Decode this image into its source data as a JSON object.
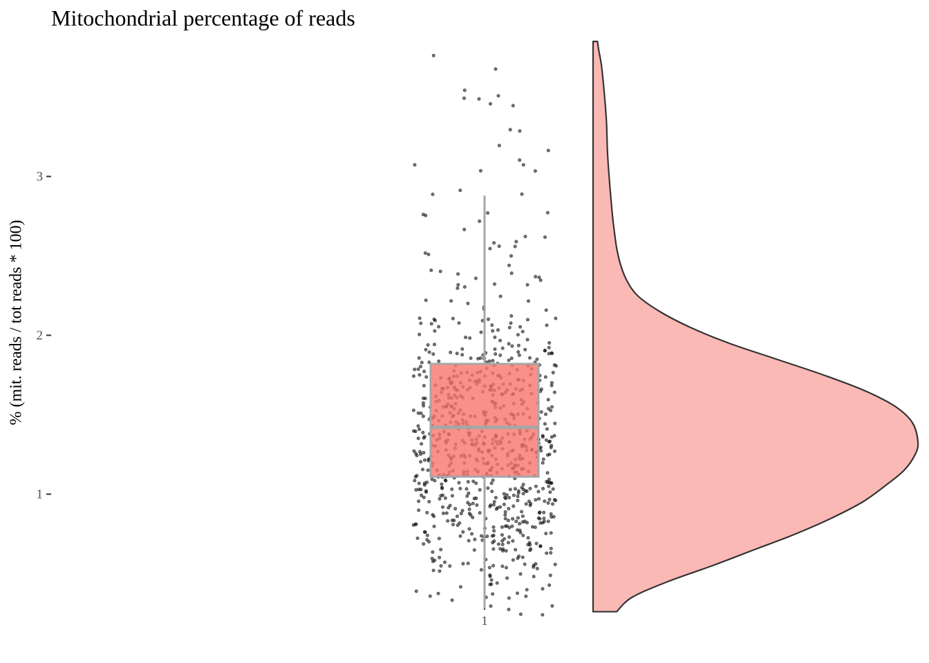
{
  "chart_data": {
    "type": "raincloud",
    "title": "Mitochondrial percentage of reads",
    "xlabel": "",
    "ylabel": "% (mit. reads / tot reads * 100)",
    "categories": [
      "1"
    ],
    "yticks": [
      1,
      2,
      3
    ],
    "ylim": [
      0.22,
      3.9
    ],
    "grid": false,
    "legend": "none",
    "box": {
      "q1": 1.11,
      "median": 1.42,
      "q3": 1.82,
      "whisker_low": 0.28,
      "whisker_high": 2.88
    },
    "density": {
      "y": [
        0.26,
        0.35,
        0.45,
        0.55,
        0.65,
        0.75,
        0.85,
        0.95,
        1.05,
        1.15,
        1.25,
        1.33,
        1.45,
        1.55,
        1.65,
        1.75,
        1.85,
        1.95,
        2.05,
        2.15,
        2.25,
        2.35,
        2.45,
        2.55,
        2.65,
        2.75,
        2.95,
        3.15,
        3.35,
        3.55,
        3.7,
        3.8,
        3.85
      ],
      "density": [
        0.085,
        0.14,
        0.27,
        0.43,
        0.58,
        0.73,
        0.86,
        0.97,
        1.05,
        1.12,
        1.16,
        1.17,
        1.15,
        1.09,
        0.98,
        0.83,
        0.66,
        0.49,
        0.35,
        0.24,
        0.16,
        0.12,
        0.098,
        0.085,
        0.077,
        0.07,
        0.06,
        0.052,
        0.048,
        0.039,
        0.03,
        0.02,
        0.016
      ]
    },
    "colors": {
      "box_fill": "#f8766d",
      "box_line": "#a6a6a6",
      "violin_fill": "#fbb9b5",
      "violin_line": "#333333",
      "points": "#000000"
    },
    "n_points": 800
  }
}
